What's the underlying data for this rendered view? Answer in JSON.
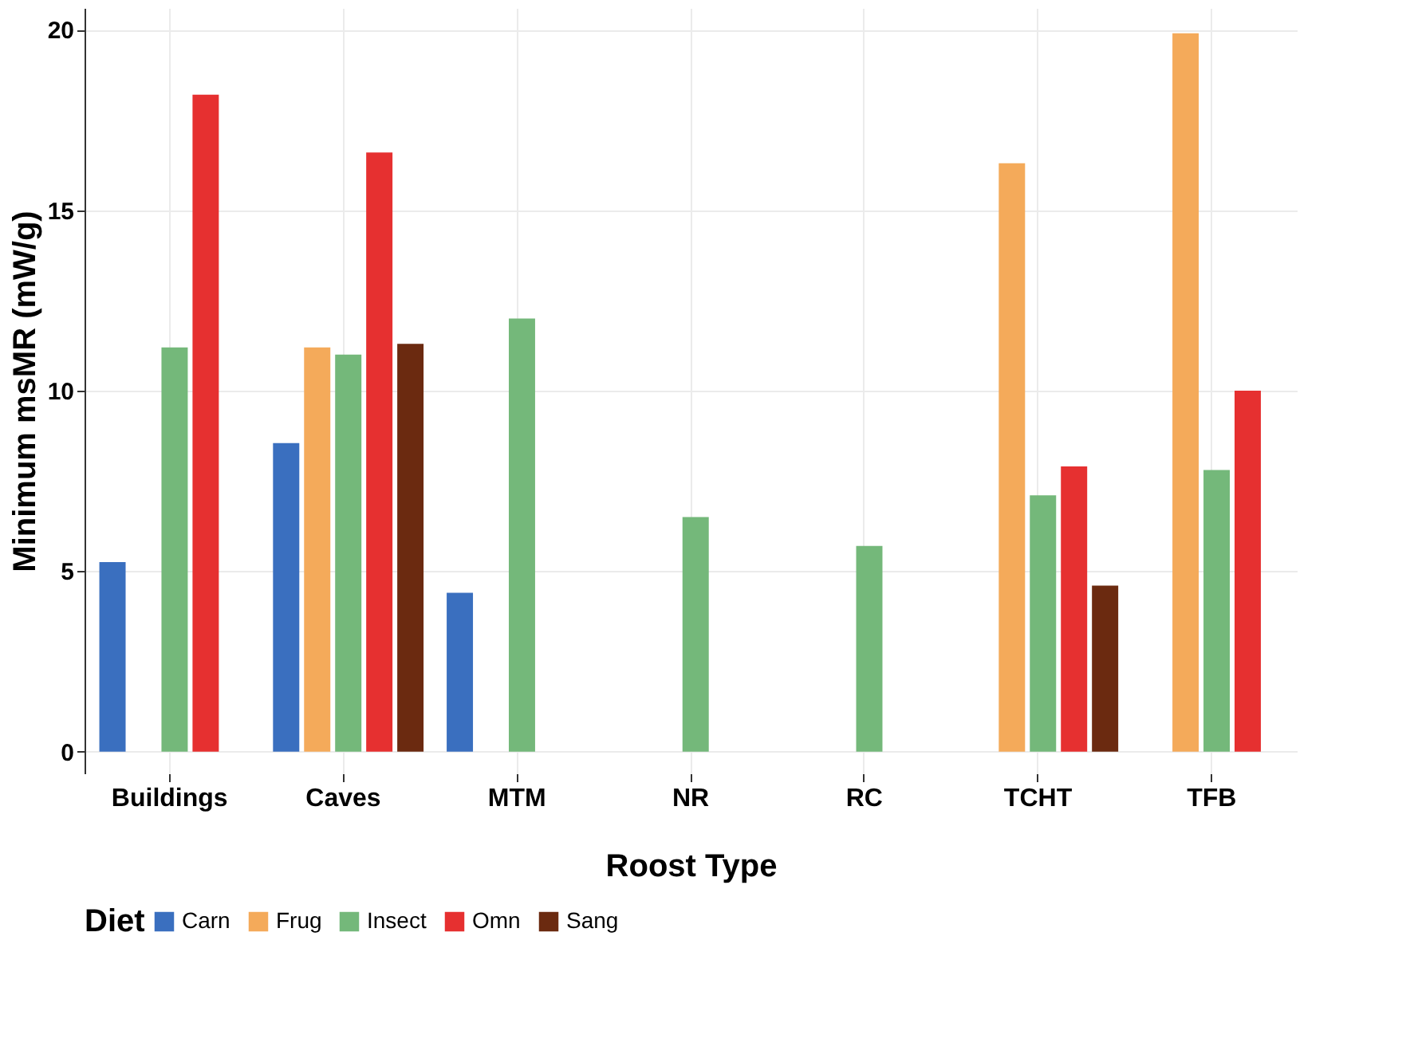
{
  "chart_data": {
    "type": "bar",
    "xlabel": "Roost Type",
    "ylabel": "Minimum msMR (mW/g)",
    "legend_title": "Diet",
    "legend": "bottom",
    "grid": true,
    "categories": [
      "Buildings",
      "Caves",
      "MTM",
      "NR",
      "RC",
      "TCHT",
      "TFB"
    ],
    "ylim": [
      -0.6,
      20.6
    ],
    "yticks": [
      0,
      5,
      10,
      15,
      20
    ],
    "series": [
      {
        "name": "Carn",
        "color": "#3a6fbf",
        "values": [
          5.25,
          8.55,
          4.4,
          null,
          null,
          null,
          null
        ]
      },
      {
        "name": "Frug",
        "color": "#f4aa5a",
        "values": [
          null,
          11.2,
          null,
          null,
          null,
          16.3,
          19.9
        ]
      },
      {
        "name": "Insect",
        "color": "#74b87a",
        "values": [
          11.2,
          11.0,
          12.0,
          6.5,
          5.7,
          7.1,
          7.8
        ]
      },
      {
        "name": "Omn",
        "color": "#e63030",
        "values": [
          18.2,
          16.6,
          null,
          null,
          null,
          7.9,
          10.0
        ]
      },
      {
        "name": "Sang",
        "color": "#6b2a10",
        "values": [
          null,
          11.3,
          null,
          null,
          null,
          4.6,
          null
        ]
      }
    ]
  }
}
